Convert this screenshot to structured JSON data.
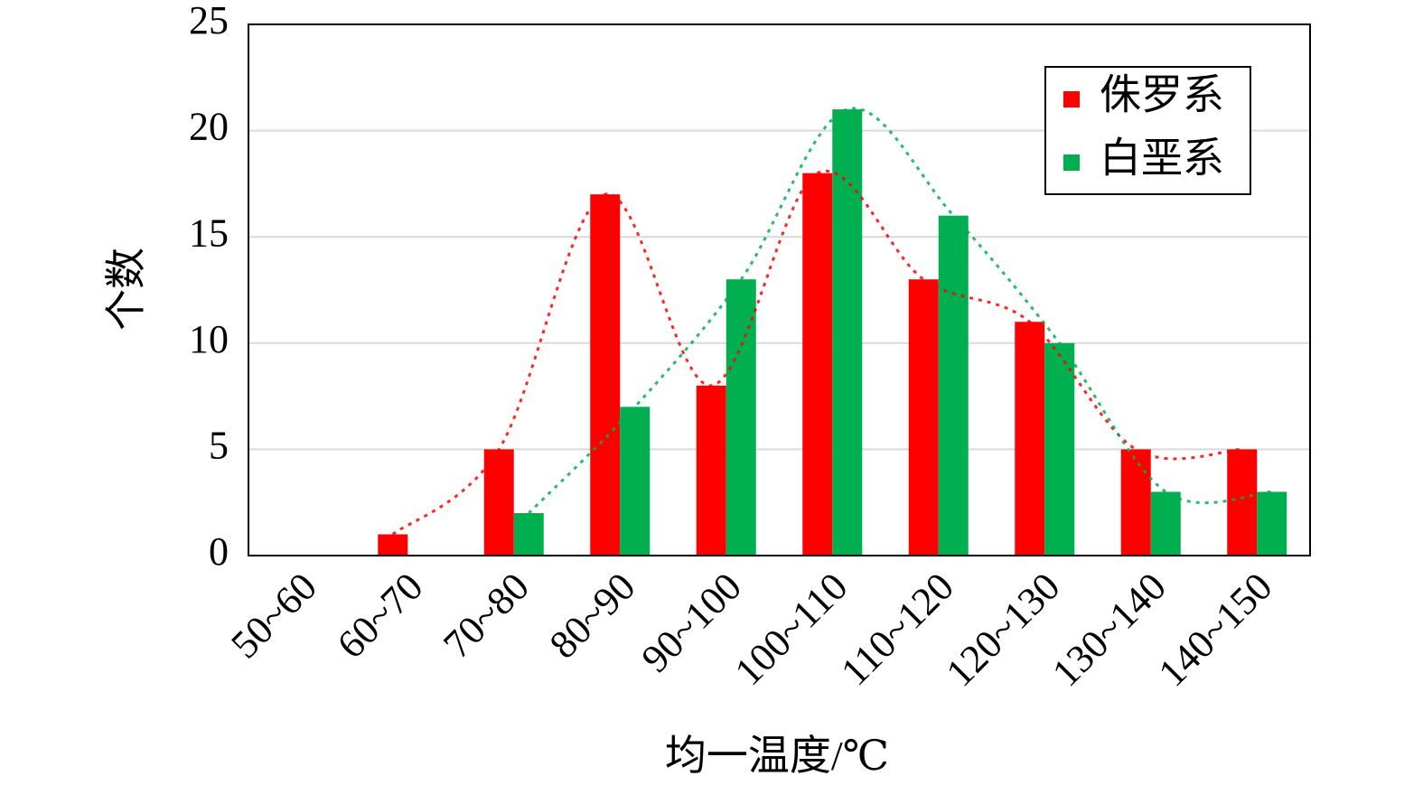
{
  "chart_data": {
    "type": "bar",
    "x_label": "均一温度/℃",
    "y_label": "个数",
    "categories": [
      "50~60",
      "60~70",
      "70~80",
      "80~90",
      "90~100",
      "100~110",
      "110~120",
      "120~130",
      "130~140",
      "140~150"
    ],
    "series": [
      {
        "name": "侏罗系",
        "color": "#ff0000",
        "values": [
          null,
          1,
          5,
          17,
          8,
          18,
          13,
          11,
          5,
          5
        ]
      },
      {
        "name": "白垩系",
        "color": "#00b050",
        "values": [
          null,
          null,
          2,
          7,
          13,
          21,
          16,
          10,
          3,
          3
        ]
      }
    ],
    "trend_lines": true,
    "ylim": [
      0,
      25
    ],
    "yticks": [
      0,
      5,
      10,
      15,
      20,
      25
    ],
    "grid": true,
    "legend": "upper right"
  }
}
